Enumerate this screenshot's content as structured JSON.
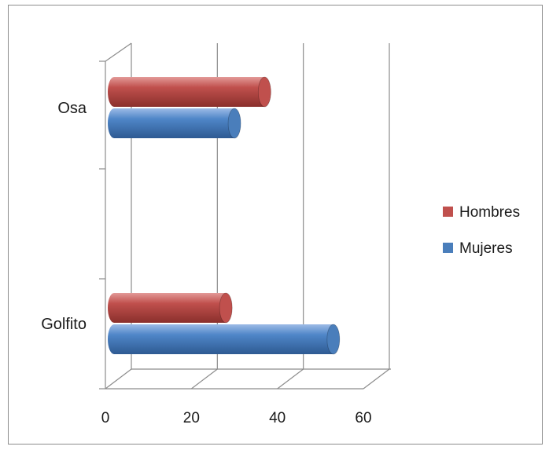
{
  "chart_data": {
    "type": "bar",
    "orientation": "horizontal",
    "style": "3d-cylinder",
    "categories": [
      "Golfito",
      "Osa"
    ],
    "series": [
      {
        "name": "Mujeres",
        "values": [
          51,
          28
        ],
        "color": "#4a7ebb"
      },
      {
        "name": "Hombres",
        "values": [
          26,
          35
        ],
        "color": "#c0504d"
      }
    ],
    "xlim": [
      0,
      60
    ],
    "xticks": [
      0,
      20,
      40,
      60
    ],
    "grid": true,
    "legend": "right",
    "title": "",
    "xlabel": "",
    "ylabel": ""
  }
}
